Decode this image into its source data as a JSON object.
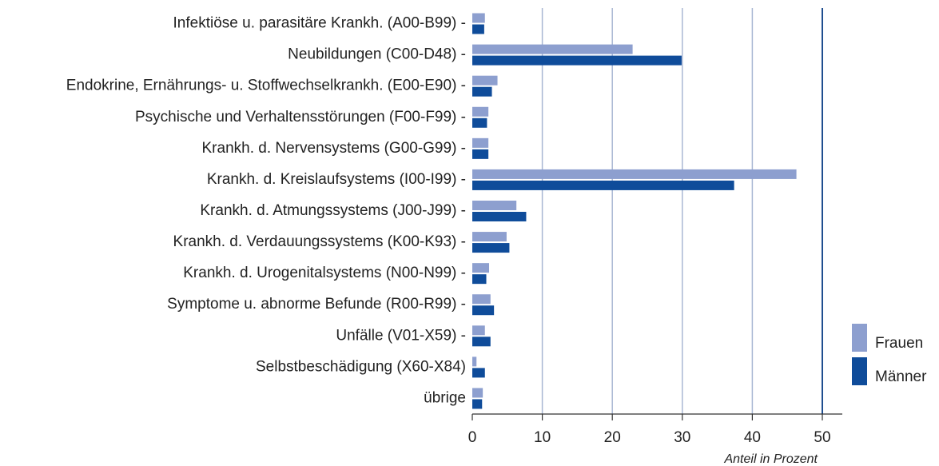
{
  "chart_data": {
    "type": "barh",
    "categories": [
      "Infektiöse u. parasitäre Krankh. (A00-B99) -",
      "Neubildungen (C00-D48) -",
      "Endokrine, Ernährungs- u. Stoffwechselkrankh. (E00-E90) -",
      "Psychische und Verhaltensstörungen (F00-F99) -",
      "Krankh. d. Nervensystems (G00-G99) -",
      "Krankh. d. Kreislaufsystems (I00-I99) -",
      "Krankh. d. Atmungssystems (J00-J99) -",
      "Krankh. d. Verdauungssystems (K00-K93) -",
      "Krankh. d. Urogenitalsystems (N00-N99) -",
      "Symptome u. abnorme Befunde (R00-R99) -",
      "Unfälle (V01-X59) -",
      "Selbstbeschädigung (X60-X84)",
      "übrige"
    ],
    "series": [
      {
        "name": "Frauen",
        "color": "#8d9fcf",
        "values": [
          1.8,
          22.9,
          3.6,
          2.3,
          2.3,
          46.3,
          6.3,
          4.9,
          2.4,
          2.6,
          1.8,
          0.6,
          1.5
        ]
      },
      {
        "name": "Männer",
        "color": "#0f4c9a",
        "values": [
          1.7,
          29.9,
          2.8,
          2.1,
          2.3,
          37.4,
          7.7,
          5.3,
          2.0,
          3.1,
          2.6,
          1.8,
          1.4
        ]
      }
    ],
    "xlabel": "Anteil in Prozent",
    "xlim": [
      0,
      52.5
    ],
    "xticks": [
      0,
      10,
      20,
      30,
      40,
      50
    ],
    "grid": true,
    "legend": "lower right"
  }
}
